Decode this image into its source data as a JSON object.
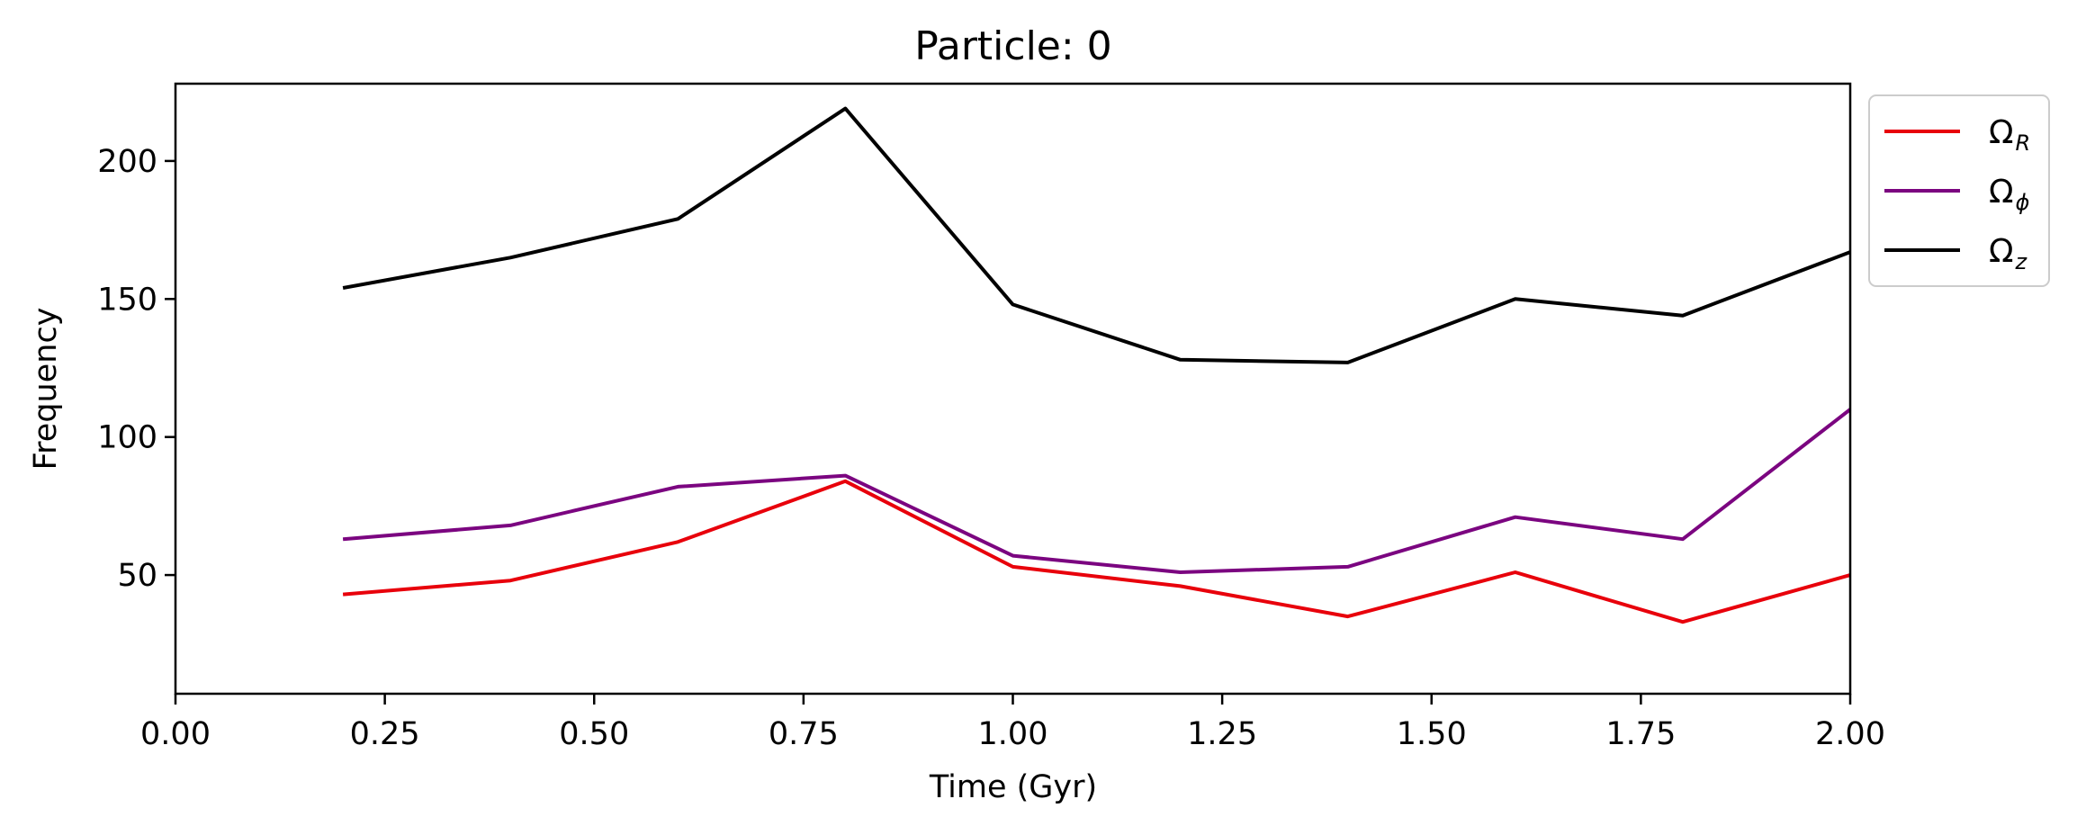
{
  "chart_data": {
    "type": "line",
    "title": "Particle: 0",
    "xlabel": "Time (Gyr)",
    "ylabel": "Frequency",
    "xlim": [
      0.0,
      2.0
    ],
    "ylim": [
      7,
      228
    ],
    "xticks": [
      "0.00",
      "0.25",
      "0.50",
      "0.75",
      "1.00",
      "1.25",
      "1.50",
      "1.75",
      "2.00"
    ],
    "yticks": [
      "50",
      "100",
      "150",
      "200"
    ],
    "grid": false,
    "legend_position": "outside-top-right",
    "x": [
      0.2,
      0.4,
      0.6,
      0.8,
      1.0,
      1.2,
      1.4,
      1.6,
      1.8,
      2.0
    ],
    "series": [
      {
        "name": "Ω",
        "subscript": "R",
        "color": "#e8000b",
        "values": [
          43,
          48,
          62,
          84,
          53,
          46,
          35,
          51,
          33,
          50
        ]
      },
      {
        "name": "Ω",
        "subscript": "ϕ",
        "color": "#7b0580",
        "values": [
          63,
          68,
          82,
          86,
          57,
          51,
          53,
          71,
          63,
          110
        ]
      },
      {
        "name": "Ω",
        "subscript": "z",
        "color": "#000000",
        "values": [
          154,
          165,
          179,
          219,
          148,
          128,
          127,
          150,
          144,
          167
        ]
      }
    ]
  }
}
